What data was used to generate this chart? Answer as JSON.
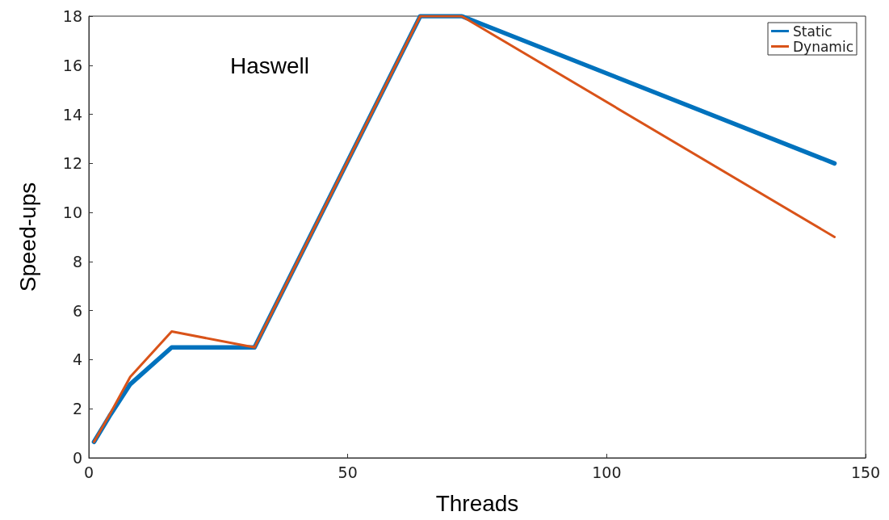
{
  "chart_data": {
    "type": "line",
    "title": "Haswell",
    "xlabel": "Threads",
    "ylabel": "Speed-ups",
    "xlim": [
      0,
      150
    ],
    "xticks": [
      0,
      50,
      100,
      150
    ],
    "ylim": [
      0,
      18
    ],
    "yticks": [
      0,
      2,
      4,
      6,
      8,
      10,
      12,
      14,
      16,
      18
    ],
    "x": [
      1,
      4,
      8,
      16,
      32,
      64,
      72,
      144
    ],
    "series": [
      {
        "name": "Static",
        "color": "#0072bd",
        "values": [
          0.65,
          1.7,
          3.0,
          4.5,
          4.5,
          18,
          18,
          12
        ]
      },
      {
        "name": "Dynamic",
        "color": "#d95319",
        "values": [
          0.65,
          1.75,
          3.3,
          5.15,
          4.5,
          18,
          18,
          9
        ]
      }
    ],
    "legend": "top right",
    "grid": false,
    "marker": "none",
    "line_style": "solid"
  }
}
